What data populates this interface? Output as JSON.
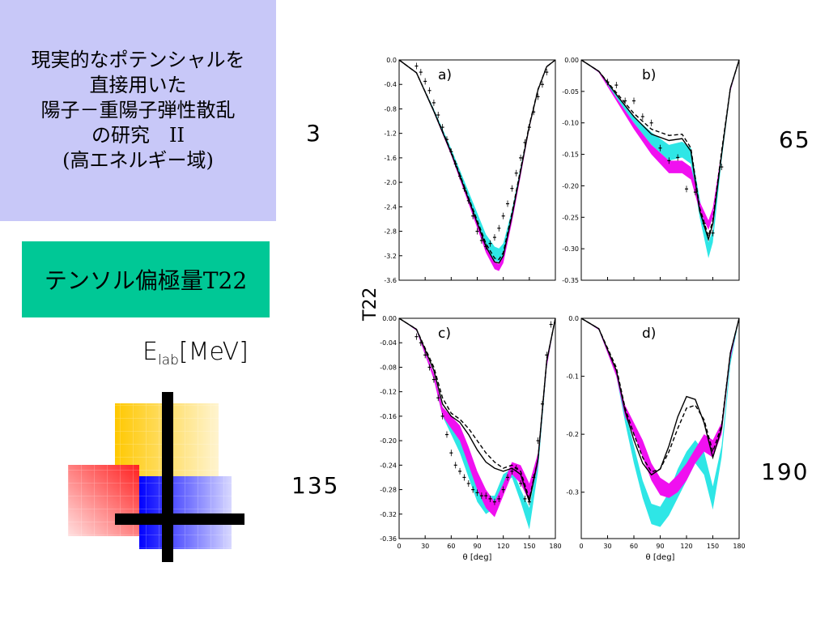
{
  "title_lines": [
    "現実的なポテンシャルを",
    "直接用いた",
    "陽子－重陽子弾性散乱",
    "の研究　II",
    "(高エネルギー域)"
  ],
  "tensor_label": "テンソル偏極量T22",
  "elab": {
    "main": "E",
    "sub": "lab",
    "unit": "[MeV]"
  },
  "energies": {
    "a": "3",
    "b": "65",
    "c": "135",
    "d": "190"
  },
  "colors": {
    "title_bg": "#c8c8f8",
    "tensor_bg": "#00c896",
    "cyan": "#2ee6e6",
    "magenta": "#f010f0"
  },
  "chart_data": [
    {
      "type": "line",
      "panel": "a)",
      "xlabel": "",
      "ylabel": "",
      "xlim": [
        0,
        180
      ],
      "ylim": [
        -3.6,
        0.0
      ],
      "yticks": [
        "0.0",
        "-0.4",
        "-0.8",
        "-1.2",
        "-1.6",
        "-2.0",
        "-2.4",
        "-2.8",
        "-3.2",
        "-3.6"
      ],
      "series": [
        {
          "style": "cyan-band",
          "x": [
            0,
            20,
            40,
            60,
            80,
            100,
            110,
            115,
            120,
            130,
            140,
            150,
            160,
            170,
            180
          ],
          "lo": [
            0,
            -0.22,
            -0.85,
            -1.55,
            -2.3,
            -3.05,
            -3.28,
            -3.3,
            -3.2,
            -2.6,
            -1.85,
            -1.1,
            -0.5,
            -0.12,
            0
          ],
          "hi": [
            0,
            -0.2,
            -0.8,
            -1.45,
            -2.15,
            -2.85,
            -3.05,
            -3.08,
            -3.0,
            -2.45,
            -1.75,
            -1.05,
            -0.48,
            -0.1,
            0
          ]
        },
        {
          "style": "magenta-band",
          "x": [
            0,
            20,
            40,
            60,
            80,
            100,
            110,
            115,
            120,
            130,
            140,
            150,
            160,
            170,
            180
          ],
          "lo": [
            0,
            -0.22,
            -0.86,
            -1.56,
            -2.35,
            -3.15,
            -3.42,
            -3.45,
            -3.32,
            -2.65,
            -1.9,
            -1.12,
            -0.5,
            -0.12,
            0
          ],
          "hi": [
            0,
            -0.2,
            -0.82,
            -1.5,
            -2.25,
            -3.02,
            -3.3,
            -3.34,
            -3.2,
            -2.55,
            -1.82,
            -1.08,
            -0.48,
            -0.1,
            0
          ]
        },
        {
          "style": "solid",
          "x": [
            0,
            20,
            40,
            60,
            80,
            100,
            110,
            115,
            120,
            130,
            140,
            150,
            160,
            170,
            180
          ],
          "y": [
            0,
            -0.21,
            -0.84,
            -1.52,
            -2.28,
            -3.05,
            -3.3,
            -3.32,
            -3.2,
            -2.55,
            -1.82,
            -1.08,
            -0.49,
            -0.11,
            0
          ]
        },
        {
          "style": "dashed",
          "x": [
            0,
            20,
            40,
            60,
            80,
            100,
            110,
            115,
            120,
            130,
            140,
            150,
            160,
            170,
            180
          ],
          "y": [
            0,
            -0.21,
            -0.83,
            -1.5,
            -2.25,
            -3.0,
            -3.24,
            -3.26,
            -3.15,
            -2.5,
            -1.78,
            -1.06,
            -0.48,
            -0.11,
            0
          ]
        },
        {
          "style": "points",
          "x": [
            20,
            25,
            30,
            35,
            40,
            45,
            50,
            55,
            60,
            65,
            70,
            75,
            80,
            85,
            90,
            95,
            100,
            105,
            110,
            115,
            120,
            125,
            130,
            135,
            140,
            145,
            150,
            155,
            160,
            165,
            170
          ],
          "y": [
            -0.1,
            -0.2,
            -0.35,
            -0.5,
            -0.7,
            -0.9,
            -1.1,
            -1.3,
            -1.5,
            -1.7,
            -1.9,
            -2.1,
            -2.3,
            -2.55,
            -2.8,
            -2.95,
            -3.05,
            -3.0,
            -2.9,
            -2.75,
            -2.55,
            -2.35,
            -2.1,
            -1.85,
            -1.6,
            -1.35,
            -1.1,
            -0.85,
            -0.6,
            -0.4,
            -0.2
          ]
        }
      ]
    },
    {
      "type": "line",
      "panel": "b)",
      "xlabel": "",
      "ylabel": "",
      "xlim": [
        0,
        180
      ],
      "ylim": [
        -0.35,
        0.0
      ],
      "yticks": [
        "0.00",
        "-0.05",
        "-0.10",
        "-0.15",
        "-0.20",
        "-0.25",
        "-0.30",
        "-0.35"
      ],
      "series": [
        {
          "style": "cyan-band",
          "x": [
            0,
            20,
            40,
            60,
            80,
            100,
            115,
            125,
            135,
            145,
            150,
            160,
            170,
            180
          ],
          "lo": [
            0,
            -0.02,
            -0.06,
            -0.1,
            -0.135,
            -0.16,
            -0.155,
            -0.165,
            -0.25,
            -0.315,
            -0.29,
            -0.16,
            -0.05,
            0
          ],
          "hi": [
            0,
            -0.018,
            -0.055,
            -0.09,
            -0.115,
            -0.135,
            -0.13,
            -0.14,
            -0.22,
            -0.29,
            -0.27,
            -0.15,
            -0.045,
            0
          ]
        },
        {
          "style": "magenta-band",
          "x": [
            0,
            20,
            40,
            60,
            80,
            100,
            115,
            125,
            135,
            145,
            150,
            160,
            170,
            180
          ],
          "lo": [
            0,
            -0.02,
            -0.065,
            -0.11,
            -0.15,
            -0.18,
            -0.18,
            -0.19,
            -0.24,
            -0.27,
            -0.25,
            -0.15,
            -0.05,
            0
          ],
          "hi": [
            0,
            -0.018,
            -0.06,
            -0.1,
            -0.135,
            -0.16,
            -0.16,
            -0.17,
            -0.225,
            -0.255,
            -0.235,
            -0.145,
            -0.045,
            0
          ]
        },
        {
          "style": "solid",
          "x": [
            0,
            20,
            40,
            60,
            80,
            100,
            115,
            125,
            135,
            145,
            150,
            160,
            170,
            180
          ],
          "y": [
            0,
            -0.018,
            -0.055,
            -0.09,
            -0.118,
            -0.128,
            -0.125,
            -0.145,
            -0.24,
            -0.285,
            -0.26,
            -0.15,
            -0.045,
            0
          ]
        },
        {
          "style": "dashed",
          "x": [
            0,
            20,
            40,
            60,
            80,
            100,
            115,
            125,
            135,
            145,
            150,
            160,
            170,
            180
          ],
          "y": [
            0,
            -0.018,
            -0.052,
            -0.085,
            -0.11,
            -0.12,
            -0.118,
            -0.14,
            -0.235,
            -0.28,
            -0.255,
            -0.145,
            -0.045,
            0
          ]
        },
        {
          "style": "points",
          "x": [
            30,
            40,
            50,
            60,
            70,
            80,
            90,
            100,
            110,
            120,
            130,
            140,
            150,
            160
          ],
          "y": [
            -0.035,
            -0.04,
            -0.065,
            -0.065,
            -0.09,
            -0.1,
            -0.14,
            -0.16,
            -0.155,
            -0.205,
            -0.21,
            -0.26,
            -0.275,
            -0.17
          ]
        }
      ]
    },
    {
      "type": "line",
      "panel": "c)",
      "xlabel": "θ [deg]",
      "ylabel": "",
      "xlim": [
        0,
        180
      ],
      "ylim": [
        -0.36,
        0.0
      ],
      "xticks": [
        "0",
        "30",
        "60",
        "90",
        "120",
        "150",
        "180"
      ],
      "yticks": [
        "0.00",
        "-0.04",
        "-0.08",
        "-0.12",
        "-0.16",
        "-0.20",
        "-0.24",
        "-0.28",
        "-0.32",
        "-0.36"
      ],
      "series": [
        {
          "style": "cyan-band",
          "x": [
            0,
            20,
            40,
            50,
            60,
            70,
            80,
            90,
            100,
            110,
            120,
            130,
            140,
            150,
            160,
            170,
            180
          ],
          "lo": [
            0,
            -0.02,
            -0.1,
            -0.16,
            -0.19,
            -0.22,
            -0.26,
            -0.3,
            -0.32,
            -0.31,
            -0.27,
            -0.26,
            -0.3,
            -0.345,
            -0.25,
            -0.08,
            0
          ],
          "hi": [
            0,
            -0.018,
            -0.09,
            -0.145,
            -0.17,
            -0.195,
            -0.23,
            -0.27,
            -0.29,
            -0.29,
            -0.255,
            -0.245,
            -0.28,
            -0.31,
            -0.23,
            -0.07,
            0
          ]
        },
        {
          "style": "magenta-band",
          "x": [
            0,
            20,
            40,
            50,
            60,
            70,
            80,
            90,
            100,
            110,
            120,
            130,
            140,
            150,
            160,
            170,
            180
          ],
          "lo": [
            0,
            -0.02,
            -0.1,
            -0.16,
            -0.18,
            -0.2,
            -0.24,
            -0.28,
            -0.31,
            -0.325,
            -0.29,
            -0.255,
            -0.27,
            -0.3,
            -0.24,
            -0.08,
            0
          ],
          "hi": [
            0,
            -0.018,
            -0.09,
            -0.145,
            -0.16,
            -0.175,
            -0.21,
            -0.25,
            -0.28,
            -0.3,
            -0.27,
            -0.235,
            -0.24,
            -0.27,
            -0.22,
            -0.07,
            0
          ]
        },
        {
          "style": "solid",
          "x": [
            0,
            20,
            40,
            50,
            60,
            70,
            80,
            90,
            100,
            110,
            120,
            130,
            140,
            150,
            160,
            170,
            180
          ],
          "y": [
            0,
            -0.018,
            -0.085,
            -0.14,
            -0.16,
            -0.17,
            -0.19,
            -0.215,
            -0.235,
            -0.245,
            -0.25,
            -0.245,
            -0.255,
            -0.3,
            -0.23,
            -0.07,
            0
          ]
        },
        {
          "style": "dashed",
          "x": [
            0,
            20,
            40,
            50,
            60,
            70,
            80,
            90,
            100,
            110,
            120,
            130,
            140,
            150,
            160,
            170,
            180
          ],
          "y": [
            0,
            -0.018,
            -0.08,
            -0.13,
            -0.155,
            -0.165,
            -0.18,
            -0.2,
            -0.22,
            -0.235,
            -0.245,
            -0.24,
            -0.25,
            -0.295,
            -0.23,
            -0.07,
            0
          ]
        },
        {
          "style": "points",
          "x": [
            20,
            25,
            30,
            35,
            40,
            45,
            50,
            55,
            60,
            65,
            70,
            75,
            80,
            85,
            90,
            95,
            100,
            105,
            110,
            115,
            120,
            125,
            130,
            135,
            140,
            145,
            150,
            155,
            160,
            165,
            170,
            175
          ],
          "y": [
            -0.03,
            -0.04,
            -0.06,
            -0.08,
            -0.1,
            -0.13,
            -0.16,
            -0.19,
            -0.22,
            -0.24,
            -0.25,
            -0.26,
            -0.27,
            -0.28,
            -0.285,
            -0.29,
            -0.29,
            -0.295,
            -0.3,
            -0.295,
            -0.28,
            -0.26,
            -0.25,
            -0.245,
            -0.27,
            -0.295,
            -0.3,
            -0.26,
            -0.2,
            -0.14,
            -0.06,
            -0.01
          ]
        }
      ]
    },
    {
      "type": "line",
      "panel": "d)",
      "xlabel": "θ [deg]",
      "ylabel": "",
      "xlim": [
        0,
        180
      ],
      "ylim": [
        -0.38,
        0.0
      ],
      "xticks": [
        "0",
        "30",
        "60",
        "90",
        "120",
        "150",
        "180"
      ],
      "yticks": [
        "0.0",
        "-0.1",
        "-0.2",
        "-0.3"
      ],
      "series": [
        {
          "style": "cyan-band",
          "x": [
            0,
            20,
            40,
            50,
            60,
            70,
            80,
            90,
            100,
            110,
            120,
            130,
            140,
            150,
            160,
            170,
            180
          ],
          "lo": [
            0,
            -0.02,
            -0.1,
            -0.18,
            -0.25,
            -0.31,
            -0.355,
            -0.36,
            -0.34,
            -0.31,
            -0.28,
            -0.25,
            -0.27,
            -0.33,
            -0.24,
            -0.08,
            0
          ],
          "hi": [
            0,
            -0.018,
            -0.09,
            -0.16,
            -0.22,
            -0.28,
            -0.32,
            -0.325,
            -0.3,
            -0.26,
            -0.23,
            -0.21,
            -0.23,
            -0.29,
            -0.22,
            -0.07,
            0
          ]
        },
        {
          "style": "magenta-band",
          "x": [
            0,
            20,
            40,
            50,
            60,
            70,
            80,
            90,
            100,
            110,
            120,
            130,
            140,
            150,
            160,
            170,
            180
          ],
          "lo": [
            0,
            -0.02,
            -0.1,
            -0.17,
            -0.2,
            -0.24,
            -0.28,
            -0.305,
            -0.31,
            -0.3,
            -0.28,
            -0.25,
            -0.23,
            -0.24,
            -0.2,
            -0.07,
            0
          ],
          "hi": [
            0,
            -0.018,
            -0.09,
            -0.15,
            -0.18,
            -0.21,
            -0.25,
            -0.275,
            -0.285,
            -0.27,
            -0.25,
            -0.225,
            -0.2,
            -0.21,
            -0.18,
            -0.06,
            0
          ]
        },
        {
          "style": "solid",
          "x": [
            0,
            20,
            40,
            50,
            60,
            70,
            80,
            90,
            100,
            110,
            120,
            130,
            140,
            150,
            160,
            170,
            180
          ],
          "y": [
            0,
            -0.018,
            -0.09,
            -0.16,
            -0.21,
            -0.25,
            -0.27,
            -0.26,
            -0.22,
            -0.17,
            -0.135,
            -0.14,
            -0.18,
            -0.24,
            -0.19,
            -0.06,
            0
          ]
        },
        {
          "style": "dashed",
          "x": [
            0,
            20,
            40,
            50,
            60,
            70,
            80,
            90,
            100,
            110,
            120,
            130,
            140,
            150,
            160,
            170,
            180
          ],
          "y": [
            0,
            -0.018,
            -0.085,
            -0.155,
            -0.2,
            -0.24,
            -0.265,
            -0.26,
            -0.23,
            -0.19,
            -0.155,
            -0.15,
            -0.175,
            -0.23,
            -0.185,
            -0.06,
            0
          ]
        }
      ]
    }
  ],
  "shared_axis_label": "T22"
}
